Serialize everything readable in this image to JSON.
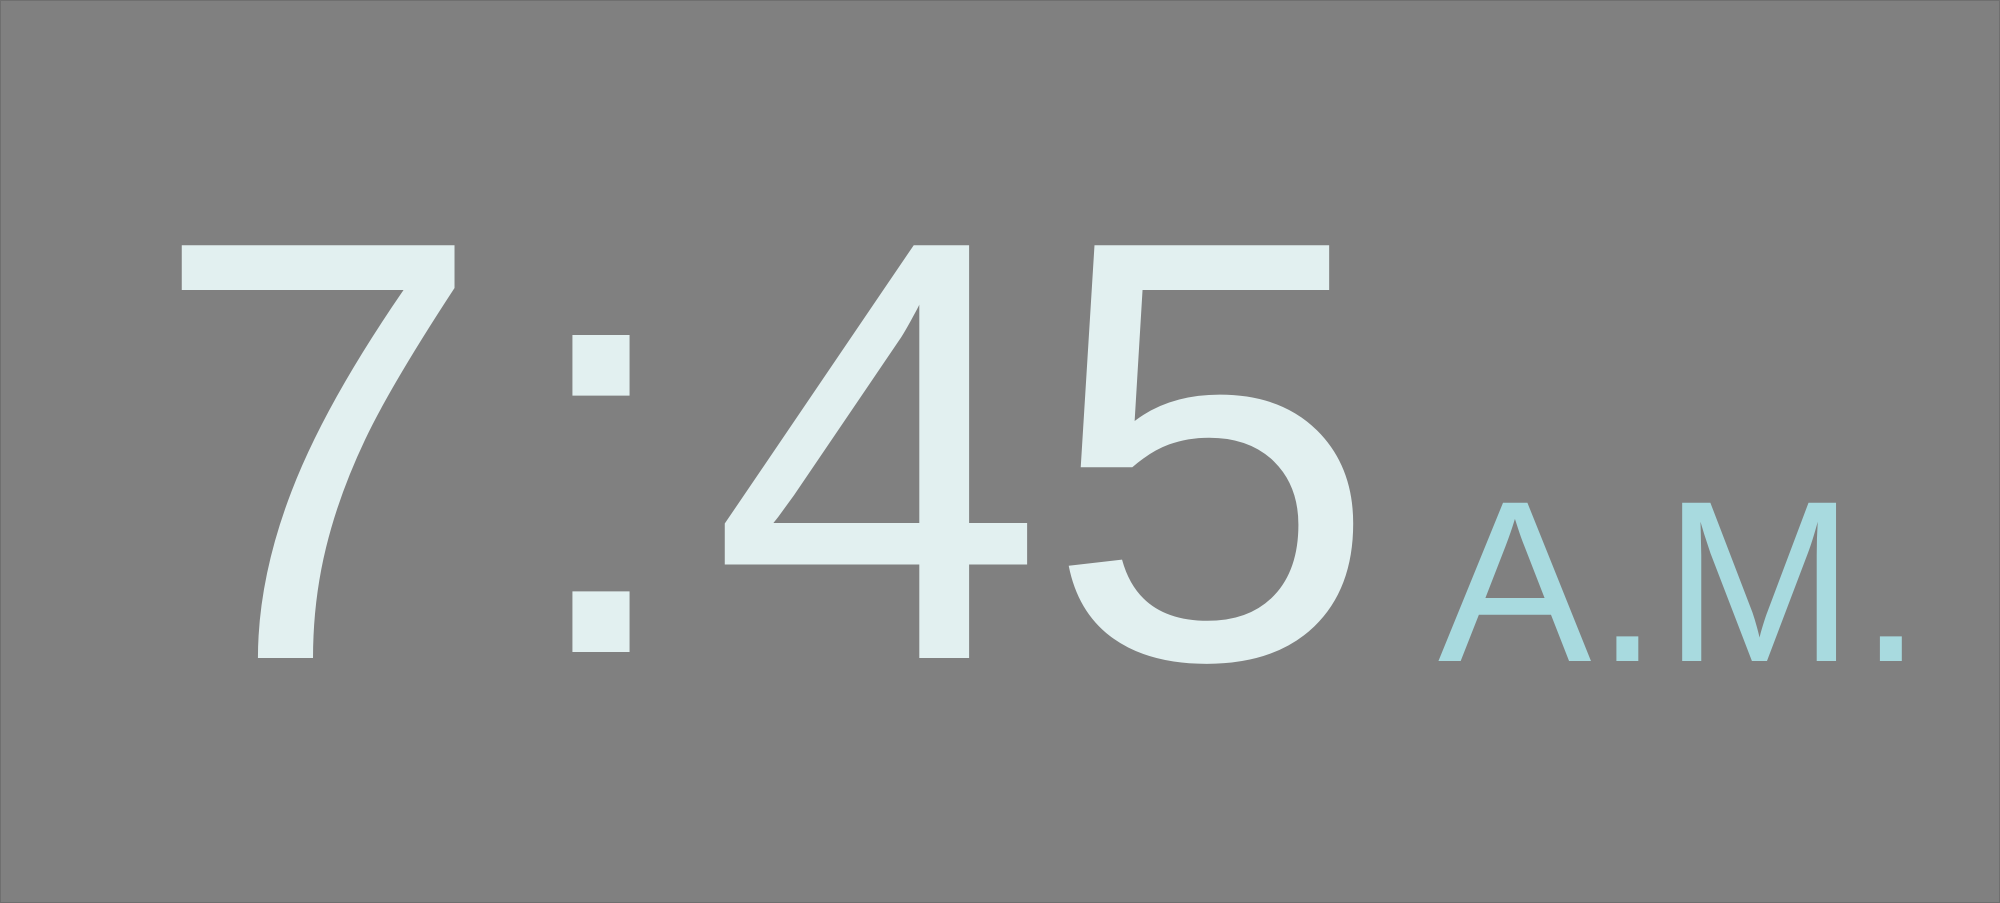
{
  "clock": {
    "hour": "7",
    "separator": ":",
    "minutes": "45",
    "meridiem": "A.M."
  },
  "colors": {
    "background": "#808080",
    "time_text": "#e2f0f0",
    "meridiem_text": "#a8dadf"
  }
}
